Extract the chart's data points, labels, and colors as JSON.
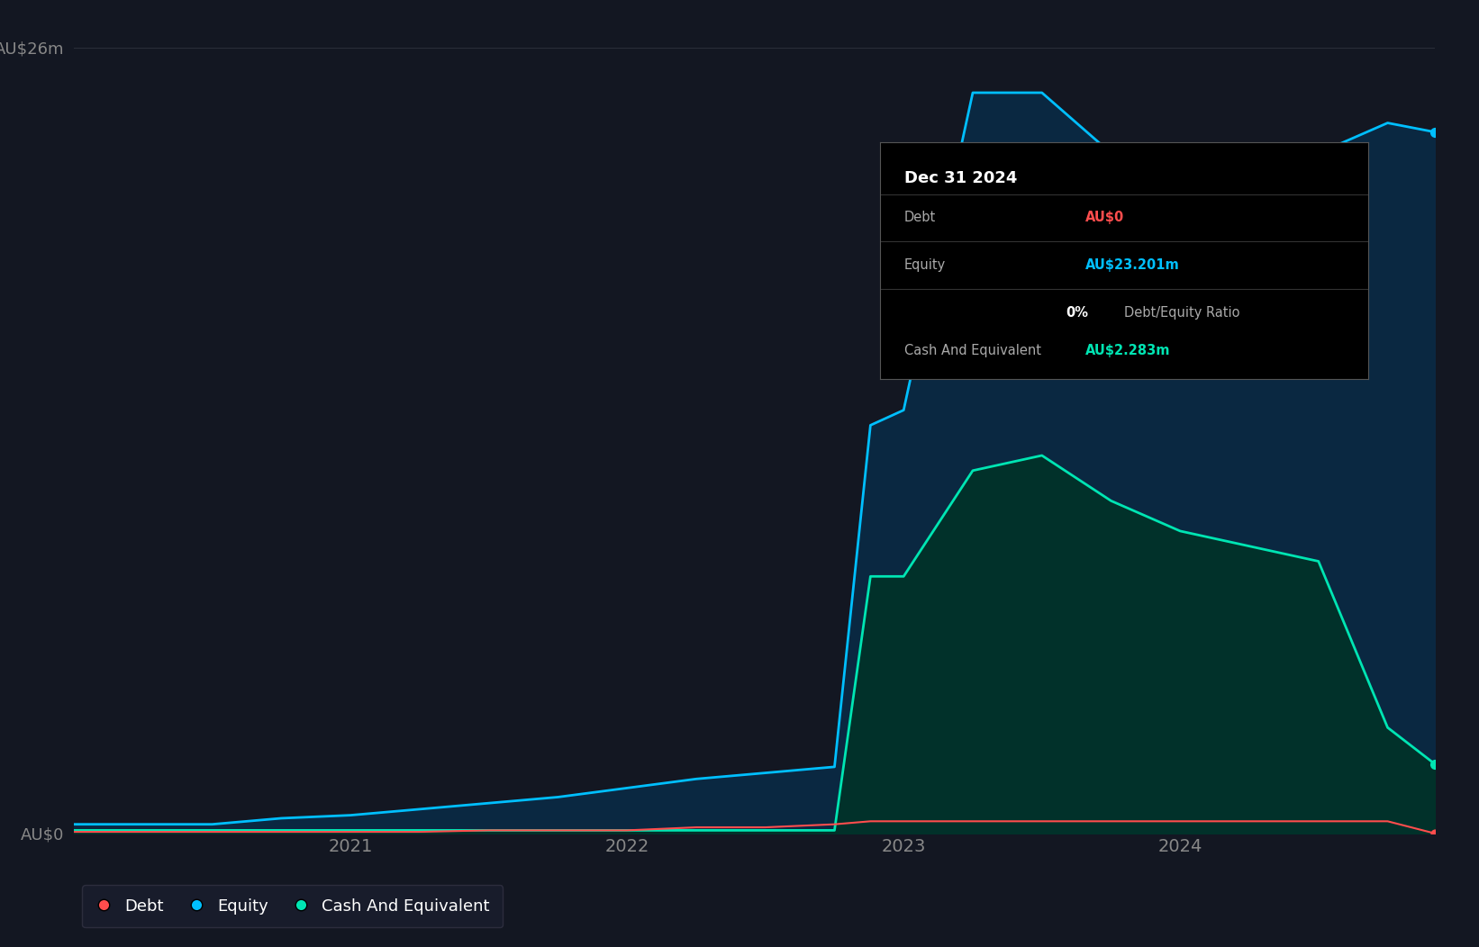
{
  "background_color": "#131722",
  "plot_bg_color": "#131722",
  "grid_color": "#2a2e39",
  "axis_label_color": "#aaaaaa",
  "tick_label_color": "#888888",
  "equity_color": "#00bfff",
  "debt_color": "#ff4d4d",
  "cash_color": "#00e5b3",
  "ylim": [
    0,
    26
  ],
  "ytick_labels": [
    "AU$0",
    "AU$26m"
  ],
  "ytick_values": [
    0,
    26
  ],
  "x_dates": [
    2020.0,
    2020.25,
    2020.5,
    2020.75,
    2021.0,
    2021.25,
    2021.5,
    2021.75,
    2022.0,
    2022.25,
    2022.5,
    2022.75,
    2022.88,
    2023.0,
    2023.25,
    2023.5,
    2023.75,
    2024.0,
    2024.25,
    2024.5,
    2024.75,
    2024.92
  ],
  "equity_values": [
    0.3,
    0.3,
    0.3,
    0.5,
    0.6,
    0.8,
    1.0,
    1.2,
    1.5,
    1.8,
    2.0,
    2.2,
    13.5,
    14.0,
    24.5,
    24.5,
    22.5,
    21.0,
    21.5,
    22.5,
    23.5,
    23.2
  ],
  "debt_values": [
    0.05,
    0.05,
    0.05,
    0.05,
    0.05,
    0.05,
    0.1,
    0.1,
    0.1,
    0.2,
    0.2,
    0.3,
    0.4,
    0.4,
    0.4,
    0.4,
    0.4,
    0.4,
    0.4,
    0.4,
    0.4,
    0.0
  ],
  "cash_values": [
    0.1,
    0.1,
    0.1,
    0.1,
    0.1,
    0.1,
    0.1,
    0.1,
    0.1,
    0.1,
    0.1,
    0.1,
    8.5,
    8.5,
    12.0,
    12.5,
    11.0,
    10.0,
    9.5,
    9.0,
    3.5,
    2.3
  ],
  "xtick_positions": [
    2021.0,
    2022.0,
    2023.0,
    2024.0
  ],
  "xtick_labels": [
    "2021",
    "2022",
    "2023",
    "2024"
  ],
  "legend_items": [
    {
      "label": "Debt",
      "color": "#ff4d4d"
    },
    {
      "label": "Equity",
      "color": "#00bfff"
    },
    {
      "label": "Cash And Equivalent",
      "color": "#00e5b3"
    }
  ],
  "tooltip": {
    "date": "Dec 31 2024",
    "rows": [
      {
        "label": "Debt",
        "value": "AU$0",
        "value_color": "#ff4d4d"
      },
      {
        "label": "Equity",
        "value": "AU$23.201m",
        "value_color": "#00bfff"
      },
      {
        "label": "",
        "value": "0% Debt/Equity Ratio",
        "value_color": "#ffffff"
      },
      {
        "label": "Cash And Equivalent",
        "value": "AU$2.283m",
        "value_color": "#00e5b3"
      }
    ],
    "bg_color": "#000000",
    "border_color": "#555555",
    "text_color": "#aaaaaa",
    "title_color": "#ffffff"
  }
}
